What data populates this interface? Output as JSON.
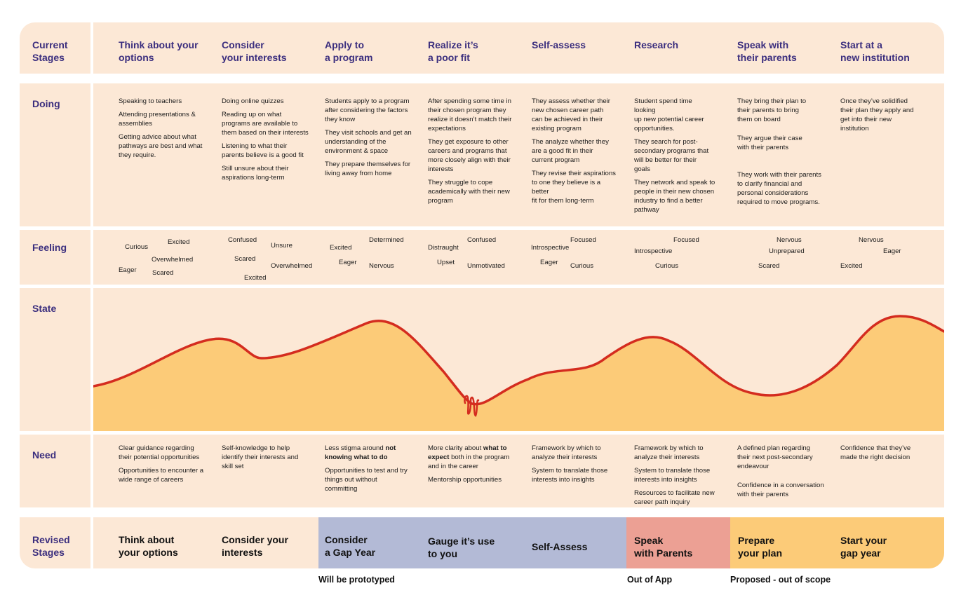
{
  "row_labels": {
    "current_stages": "Current\nStages",
    "doing": "Doing",
    "feeling": "Feeling",
    "state": "State",
    "need": "Need",
    "revised_stages": "Revised\nStages"
  },
  "stages": [
    "Think about your\noptions",
    "Consider\nyour interests",
    "Apply to\na program",
    "Realize it’s\na poor fit",
    "Self-assess",
    "Research",
    "Speak with\ntheir parents",
    "Start at a\nnew institution"
  ],
  "doing": [
    [
      "Speaking to teachers",
      "Attending presentations &\nassemblies",
      "Getting advice about what\npathways are best and what\nthey require."
    ],
    [
      "Doing online quizzes",
      "Reading up on what\nprograms are available to\nthem based on their interests",
      "Listening to what their\nparents believe is a good fit",
      "Still unsure about their\naspirations long-term"
    ],
    [
      "Students apply to a program\nafter considering the factors\nthey know",
      "They visit schools and get an\nunderstanding of the\nenvironment & space",
      "They prepare themselves for\nliving away from home"
    ],
    [
      "After spending some time in\ntheir chosen program they\nrealize it doesn’t match their\nexpectations",
      "They get exposure to other\ncareers and programs that\nmore closely align with their\ninterests",
      "They struggle to cope\nacademically with their new\nprogram"
    ],
    [
      "They assess whether their\nnew chosen career path\ncan be  achieved in their\nexisting program",
      "The analyze whether they\nare a good fit in their\ncurrent program",
      "They revise their aspirations\nto one they believe is a\nbetter\nfit for them long-term"
    ],
    [
      "Student spend time\nlooking\nup new potential career\nopportunities.",
      "They search for post-\nsecondary programs that\nwill be better for their\ngoals",
      "They network and speak to\npeople in their new chosen\nindustry to  find a better\npathway"
    ],
    [
      "They bring their plan to\ntheir parents to bring\nthem on board",
      "They argue their case\nwith their parents",
      "They work with their parents\nto clarify financial and\npersonal considerations\nrequired to move programs."
    ],
    [
      "Once they’ve solidified\ntheir plan they apply and\nget into their new\ninstitution"
    ]
  ],
  "feelings": [
    [
      "Curious",
      "Excited",
      "Overwhelmed",
      "Eager",
      "Scared"
    ],
    [
      "Confused",
      "Unsure",
      "Scared",
      "Overwhelmed",
      "Excited"
    ],
    [
      "Determined",
      "Excited",
      "Eager",
      "Nervous"
    ],
    [
      "Confused",
      "Distraught",
      "Upset",
      "Unmotivated"
    ],
    [
      "Focused",
      "Introspective",
      "Eager",
      "Curious"
    ],
    [
      "Focused",
      "Introspective",
      "Curious"
    ],
    [
      "Nervous",
      "Unprepared",
      "Scared"
    ],
    [
      "Nervous",
      "Eager",
      "Excited"
    ]
  ],
  "needs": [
    [
      "Clear guidance regarding\ntheir potential opportunities",
      "Opportunities to encounter a\nwide range of careers"
    ],
    [
      "Self-knowledge to help\nidentify their interests and\nskill set"
    ],
    [
      {
        "pre": "Less stigma around ",
        "bold": "not\nknowing what to do",
        "post": ""
      },
      "Opportunities to test and try\nthings out without\ncommitting"
    ],
    [
      {
        "pre": "More clarity about ",
        "bold": "what to\nexpect",
        "post": " both in the program\nand in the career"
      },
      "Mentorship opportunities"
    ],
    [
      "Framework by which to\nanalyze their interests",
      "System to translate those\ninterests into insights"
    ],
    [
      "Framework by which to\nanalyze their interests",
      "System to translate those\ninterests into insights",
      "Resources to facilitate new\ncareer path inquiry"
    ],
    [
      "A defined plan regarding\ntheir next post-secondary\nendeavour",
      "Confidence in a conversation\nwith their parents"
    ],
    [
      "Confidence that they’ve\nmade the right decision"
    ]
  ],
  "revised_stages": [
    "Think about\nyour options",
    "Consider your\ninterests",
    "Consider\na Gap Year",
    "Gauge it’s use\nto you",
    "Self-Assess",
    "Speak\nwith Parents",
    "Prepare\nyour plan",
    "Start your\ngap year"
  ],
  "footnotes": {
    "prototyped": "Will be prototyped",
    "out_of_app": "Out of App",
    "proposed": "Proposed - out of scope"
  },
  "colors": {
    "row_bg": "#fce8d6",
    "label": "#3b2e7e",
    "curve_line": "#d42c1f",
    "curve_fill": "#fccb78",
    "prototyped_band": "#b3bad6",
    "out_of_app_band": "#eca094",
    "proposed_band": "#fccb78"
  }
}
